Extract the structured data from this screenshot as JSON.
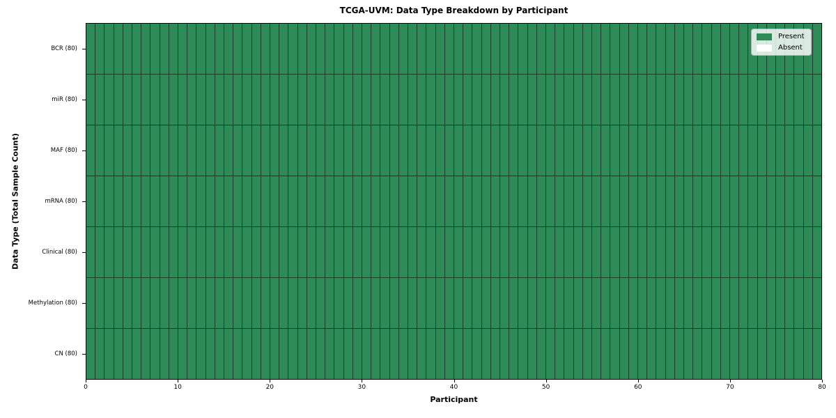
{
  "chart_data": {
    "type": "heatmap",
    "title": "TCGA-UVM: Data Type Breakdown by Participant",
    "xlabel": "Participant",
    "ylabel": "Data Type (Total Sample Count)",
    "n_participants": 80,
    "xlim": [
      0,
      80
    ],
    "x_ticks": [
      0,
      10,
      20,
      30,
      40,
      50,
      60,
      70,
      80
    ],
    "rows": [
      {
        "label": "BCR (80)",
        "present_count": 80
      },
      {
        "label": "miR (80)",
        "present_count": 80
      },
      {
        "label": "MAF (80)",
        "present_count": 80
      },
      {
        "label": "mRNA (80)",
        "present_count": 80
      },
      {
        "label": "Clinical (80)",
        "present_count": 80
      },
      {
        "label": "Methylation (80)",
        "present_count": 80
      },
      {
        "label": "CN (80)",
        "present_count": 80
      }
    ],
    "colors": {
      "present": "#2e8b57",
      "absent": "#ffffff",
      "grid_line": "#16402a",
      "spine": "#000000"
    },
    "legend": {
      "position": "upper right",
      "entries": [
        {
          "label": "Present",
          "color": "#2e8b57"
        },
        {
          "label": "Absent",
          "color": "#ffffff"
        }
      ]
    },
    "grid": true
  }
}
